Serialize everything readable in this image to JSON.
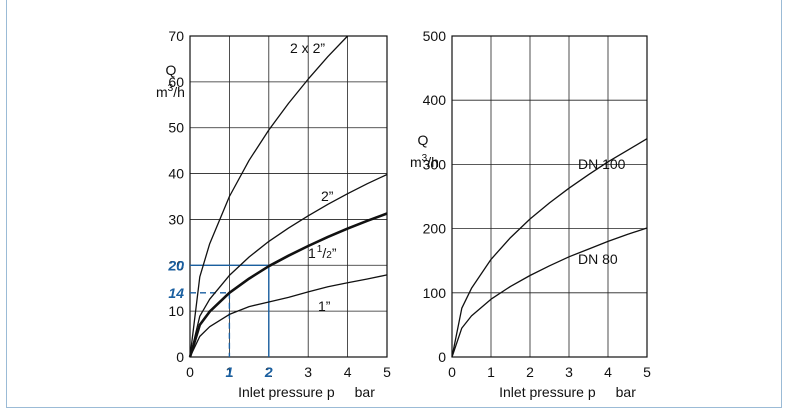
{
  "chart_data": [
    {
      "type": "line",
      "xlabel": "Inlet pressure p",
      "xunit": "bar",
      "ylabel_line1": "Q",
      "ylabel_line2": "m³/h",
      "xlim": [
        0,
        5
      ],
      "ylim": [
        0,
        70
      ],
      "x_ticks": [
        "0",
        "1",
        "2",
        "3",
        "4",
        "5"
      ],
      "y_ticks": [
        "0",
        "10",
        "20",
        "30",
        "40",
        "50",
        "60",
        "70"
      ],
      "grid": true,
      "series": [
        {
          "name": "2 x 2”",
          "label_parts": [
            "2 x 2”"
          ],
          "x": [
            0,
            0.25,
            0.5,
            1,
            1.5,
            2,
            2.5,
            3,
            3.5,
            4
          ],
          "y": [
            0,
            17.5,
            24.7,
            35,
            42.9,
            49.5,
            55.3,
            60.6,
            65.5,
            70
          ]
        },
        {
          "name": "2”",
          "label_parts": [
            "2”"
          ],
          "x": [
            0,
            0.25,
            0.5,
            1,
            1.5,
            2,
            2.5,
            3,
            3.5,
            4,
            4.5,
            5
          ],
          "y": [
            0,
            8.9,
            12.6,
            17.8,
            21.8,
            25.2,
            28.1,
            30.8,
            33.3,
            35.6,
            37.8,
            39.8
          ]
        },
        {
          "name": "1 1/2”",
          "label_parts": [
            "1",
            "1",
            "/",
            "2",
            "”"
          ],
          "x": [
            0,
            0.25,
            0.5,
            1,
            1.5,
            2,
            2.5,
            3,
            3.5,
            4,
            4.5,
            5
          ],
          "y": [
            0,
            7,
            9.9,
            14,
            17.1,
            19.8,
            22.1,
            24.2,
            26.2,
            28,
            29.7,
            31.3
          ]
        },
        {
          "name": "1”",
          "label_parts": [
            "1”"
          ],
          "x": [
            0,
            0.25,
            0.5,
            1,
            1.5,
            2,
            2.5,
            3,
            3.5,
            4,
            4.5,
            5
          ],
          "y": [
            0,
            4.5,
            6.6,
            9.3,
            11,
            12,
            13,
            14.2,
            15.3,
            16.2,
            17,
            17.9
          ]
        }
      ],
      "highlight": {
        "color": "#1a5fa0",
        "points": [
          {
            "x": 1,
            "y": 14,
            "x_label": "1",
            "y_label": "14",
            "dashed": true
          },
          {
            "x": 2,
            "y": 20,
            "x_label": "2",
            "y_label": "20",
            "dashed": false
          }
        ]
      }
    },
    {
      "type": "line",
      "xlabel": "Inlet pressure p",
      "xunit": "bar",
      "ylabel_line1": "Q",
      "ylabel_line2": "m³/h",
      "xlim": [
        0,
        5
      ],
      "ylim": [
        0,
        500
      ],
      "x_ticks": [
        "0",
        "1",
        "2",
        "3",
        "4",
        "5"
      ],
      "y_ticks": [
        "0",
        "100",
        "200",
        "300",
        "400",
        "500"
      ],
      "grid": true,
      "series": [
        {
          "name": "DN 100",
          "label_parts": [
            "DN 100"
          ],
          "x": [
            0,
            0.25,
            0.5,
            1,
            1.5,
            2,
            2.5,
            3,
            3.5,
            4,
            4.5,
            5
          ],
          "y": [
            0,
            76,
            107,
            152,
            186,
            215,
            240,
            263,
            284,
            304,
            322,
            340
          ]
        },
        {
          "name": "DN 80",
          "label_parts": [
            "DN 80"
          ],
          "x": [
            0,
            0.25,
            0.5,
            1,
            1.5,
            2,
            2.5,
            3,
            3.5,
            4,
            4.5,
            5
          ],
          "y": [
            0,
            45,
            64,
            90,
            110,
            127,
            142,
            156,
            168,
            180,
            191,
            201
          ]
        }
      ]
    }
  ]
}
